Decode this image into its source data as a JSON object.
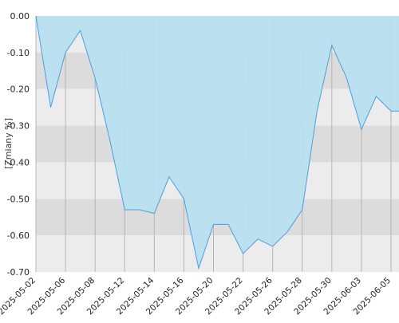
{
  "chart_data": {
    "type": "area",
    "title": "",
    "xlabel": "",
    "ylabel": "[Zmiany %]",
    "ylim": [
      -0.7,
      0.0
    ],
    "y_ticks": [
      0.0,
      -0.1,
      -0.2,
      -0.3,
      -0.4,
      -0.5,
      -0.6,
      -0.7
    ],
    "y_tick_labels": [
      "0.00",
      "-0.10",
      "-0.20",
      "-0.30",
      "-0.40",
      "-0.50",
      "-0.60",
      "-0.70"
    ],
    "x_tick_labels": [
      "2025-05-02",
      "2025-05-06",
      "2025-05-08",
      "2025-05-12",
      "2025-05-14",
      "2025-05-16",
      "2025-05-20",
      "2025-05-22",
      "2025-05-26",
      "2025-05-28",
      "2025-05-30",
      "2025-06-03",
      "2025-06-05"
    ],
    "grid": true,
    "fill_color": "#b8dff0",
    "line_color": "#4a9fe0",
    "band_colors": [
      "#ececec",
      "#dcdcdc"
    ],
    "series": [
      {
        "x": [
          "2025-05-02",
          "2025-05-05",
          "2025-05-06",
          "2025-05-07",
          "2025-05-08",
          "2025-05-09",
          "2025-05-12",
          "2025-05-13",
          "2025-05-14",
          "2025-05-15",
          "2025-05-16",
          "2025-05-19",
          "2025-05-20",
          "2025-05-21",
          "2025-05-22",
          "2025-05-23",
          "2025-05-26",
          "2025-05-27",
          "2025-05-28",
          "2025-05-29",
          "2025-05-30",
          "2025-06-02",
          "2025-06-03",
          "2025-06-04",
          "2025-06-05",
          "2025-06-06"
        ],
        "values": [
          0.0,
          -0.25,
          -0.1,
          -0.04,
          -0.17,
          -0.34,
          -0.53,
          -0.53,
          -0.54,
          -0.44,
          -0.5,
          -0.69,
          -0.57,
          -0.57,
          -0.65,
          -0.61,
          -0.63,
          -0.59,
          -0.53,
          -0.26,
          -0.08,
          -0.17,
          -0.31,
          -0.22,
          -0.26,
          -0.26
        ]
      }
    ]
  }
}
